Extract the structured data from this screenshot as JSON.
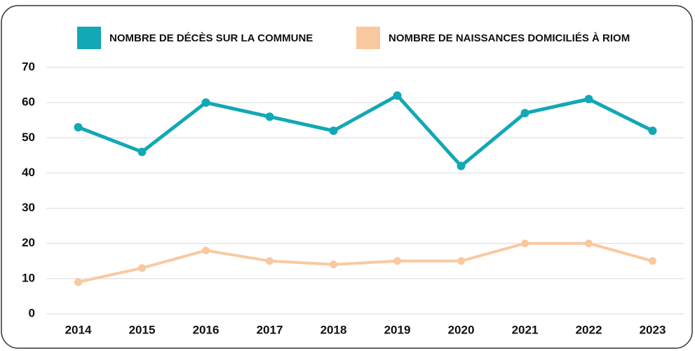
{
  "chart_data": {
    "type": "line",
    "categories": [
      "2014",
      "2015",
      "2016",
      "2017",
      "2018",
      "2019",
      "2020",
      "2021",
      "2022",
      "2023"
    ],
    "series": [
      {
        "name": "NOMBRE DE DÉCÈS SUR LA COMMUNE",
        "color": "#12a8b5",
        "values": [
          53,
          46,
          60,
          56,
          52,
          62,
          42,
          57,
          61,
          52
        ]
      },
      {
        "name": "NOMBRE DE NAISSANCES DOMICILIÉS À RIOM",
        "color": "#f8c9a0",
        "values": [
          9,
          13,
          18,
          15,
          14,
          15,
          15,
          20,
          20,
          15
        ]
      }
    ],
    "ylim": [
      0,
      70
    ],
    "yticks": [
      0,
      10,
      20,
      30,
      40,
      50,
      60,
      70
    ],
    "grid": true,
    "legend": "top"
  }
}
